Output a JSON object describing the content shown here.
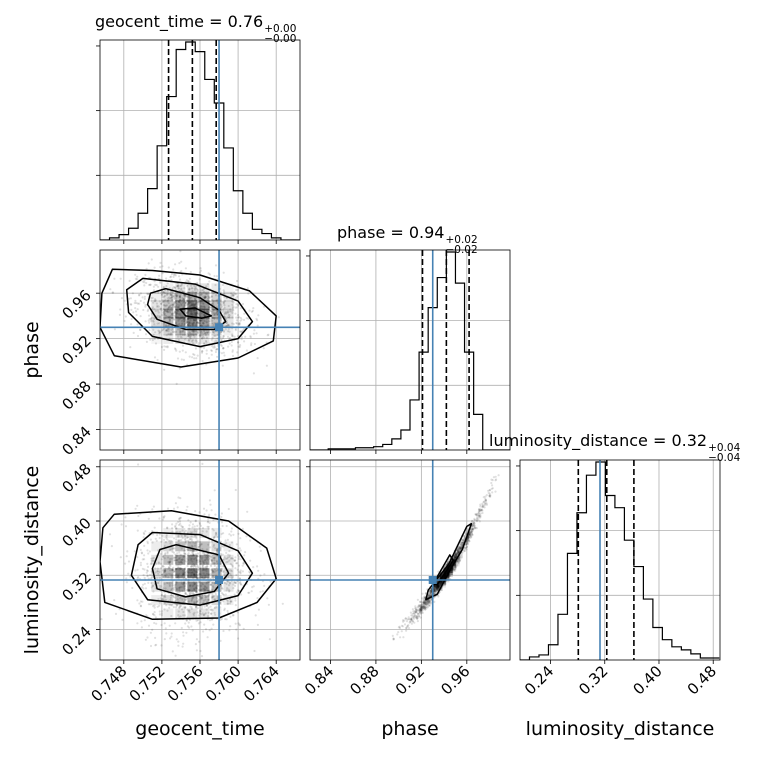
{
  "chart_data": {
    "type": "corner",
    "parameters": [
      "geocent_time",
      "phase",
      "luminosity_distance"
    ],
    "axis_labels": {
      "geocent_time": "geocent_time",
      "phase": "phase",
      "luminosity_distance": "luminosity_distance"
    },
    "ranges": {
      "geocent_time": [
        0.7455,
        0.7665
      ],
      "phase": [
        0.822,
        0.998
      ],
      "luminosity_distance": [
        0.195,
        0.49
      ]
    },
    "ticks": {
      "geocent_time": [
        0.748,
        0.752,
        0.756,
        0.76,
        0.764
      ],
      "phase": [
        0.84,
        0.88,
        0.92,
        0.96
      ],
      "luminosity_distance": [
        0.24,
        0.32,
        0.4,
        0.48
      ]
    },
    "tick_labels": {
      "geocent_time": [
        "0.748",
        "0.752",
        "0.756",
        "0.760",
        "0.764"
      ],
      "phase": [
        "0.84",
        "0.88",
        "0.92",
        "0.96"
      ],
      "luminosity_distance": [
        "0.24",
        "0.32",
        "0.40",
        "0.48"
      ]
    },
    "truth_values": {
      "geocent_time": 0.758,
      "phase": 0.93,
      "luminosity_distance": 0.313
    },
    "truth_color": "#4682b4",
    "titles": [
      {
        "label": "geocent_time = 0.76",
        "plus": "+0.00",
        "minus": "−0.00"
      },
      {
        "label": "phase = 0.94",
        "plus": "+0.02",
        "minus": "−0.02"
      },
      {
        "label": "luminosity_distance = 0.32",
        "plus": "+0.04",
        "minus": "−0.04"
      }
    ],
    "quantiles": {
      "geocent_time": [
        0.7527,
        0.7552,
        0.7577
      ],
      "phase": [
        0.921,
        0.942,
        0.962
      ],
      "luminosity_distance": [
        0.281,
        0.323,
        0.363
      ]
    },
    "histograms": {
      "geocent_time": {
        "edges": [
          0.7455,
          0.7465,
          0.7475,
          0.7485,
          0.7495,
          0.7505,
          0.7515,
          0.7525,
          0.7535,
          0.7545,
          0.7555,
          0.7565,
          0.7575,
          0.7585,
          0.7595,
          0.7605,
          0.7615,
          0.7625,
          0.7635,
          0.7645,
          0.7655,
          0.7665
        ],
        "counts": [
          0,
          2,
          5,
          11,
          25,
          48,
          88,
          134,
          178,
          185,
          176,
          150,
          128,
          86,
          46,
          25,
          10,
          6,
          2,
          0,
          0
        ]
      },
      "phase": {
        "edges": [
          0.822,
          0.83,
          0.838,
          0.846,
          0.854,
          0.862,
          0.87,
          0.878,
          0.886,
          0.894,
          0.902,
          0.91,
          0.918,
          0.926,
          0.934,
          0.942,
          0.95,
          0.958,
          0.966,
          0.974,
          0.982,
          0.99,
          0.998
        ],
        "counts": [
          0,
          0,
          1,
          1,
          1,
          2,
          2,
          3,
          5,
          10,
          18,
          45,
          88,
          128,
          155,
          178,
          150,
          88,
          32,
          0,
          0,
          0
        ]
      },
      "luminosity_distance": {
        "edges": [
          0.195,
          0.209,
          0.223,
          0.237,
          0.251,
          0.265,
          0.279,
          0.293,
          0.307,
          0.321,
          0.335,
          0.349,
          0.363,
          0.377,
          0.391,
          0.405,
          0.419,
          0.433,
          0.447,
          0.461,
          0.475,
          0.489
        ],
        "counts": [
          0,
          3,
          5,
          15,
          45,
          105,
          145,
          182,
          195,
          162,
          150,
          118,
          92,
          60,
          32,
          20,
          13,
          10,
          6,
          2,
          2
        ]
      }
    },
    "contours_2d": {
      "phase_vs_geocent_time": [
        [
          [
            0.7524,
            0.964
          ],
          [
            0.756,
            0.956
          ],
          [
            0.758,
            0.945
          ],
          [
            0.7587,
            0.935
          ],
          [
            0.7575,
            0.928
          ],
          [
            0.7545,
            0.928
          ],
          [
            0.7515,
            0.937
          ],
          [
            0.7505,
            0.95
          ],
          [
            0.7508,
            0.96
          ]
        ],
        [
          [
            0.75,
            0.973
          ],
          [
            0.7555,
            0.968
          ],
          [
            0.76,
            0.953
          ],
          [
            0.7615,
            0.935
          ],
          [
            0.76,
            0.92
          ],
          [
            0.756,
            0.913
          ],
          [
            0.751,
            0.922
          ],
          [
            0.7485,
            0.943
          ],
          [
            0.7483,
            0.963
          ]
        ],
        [
          [
            0.7468,
            0.981
          ],
          [
            0.751,
            0.98
          ],
          [
            0.756,
            0.976
          ],
          [
            0.7612,
            0.962
          ],
          [
            0.764,
            0.94
          ],
          [
            0.7637,
            0.918
          ],
          [
            0.76,
            0.903
          ],
          [
            0.754,
            0.895
          ],
          [
            0.747,
            0.905
          ],
          [
            0.7455,
            0.93
          ],
          [
            0.7457,
            0.96
          ]
        ],
        [
          [
            0.7539,
            0.946
          ],
          [
            0.7555,
            0.947
          ],
          [
            0.7572,
            0.94
          ],
          [
            0.7562,
            0.938
          ],
          [
            0.7545,
            0.94
          ]
        ]
      ],
      "luminosity_distance_vs_geocent_time": [
        [
          [
            0.7535,
            0.365
          ],
          [
            0.758,
            0.35
          ],
          [
            0.759,
            0.323
          ],
          [
            0.7575,
            0.296
          ],
          [
            0.7545,
            0.288
          ],
          [
            0.7515,
            0.3
          ],
          [
            0.751,
            0.33
          ],
          [
            0.7518,
            0.358
          ]
        ],
        [
          [
            0.751,
            0.383
          ],
          [
            0.756,
            0.38
          ],
          [
            0.76,
            0.356
          ],
          [
            0.7615,
            0.323
          ],
          [
            0.76,
            0.29
          ],
          [
            0.756,
            0.276
          ],
          [
            0.7505,
            0.284
          ],
          [
            0.7488,
            0.32
          ],
          [
            0.7495,
            0.365
          ]
        ],
        [
          [
            0.747,
            0.41
          ],
          [
            0.753,
            0.415
          ],
          [
            0.759,
            0.4
          ],
          [
            0.763,
            0.36
          ],
          [
            0.764,
            0.315
          ],
          [
            0.762,
            0.28
          ],
          [
            0.758,
            0.257
          ],
          [
            0.751,
            0.255
          ],
          [
            0.746,
            0.28
          ],
          [
            0.7455,
            0.34
          ],
          [
            0.7458,
            0.39
          ]
        ]
      ],
      "luminosity_distance_vs_phase": [
        [
          [
            0.944,
            0.336
          ],
          [
            0.96,
            0.392
          ],
          [
            0.964,
            0.396
          ],
          [
            0.956,
            0.358
          ],
          [
            0.946,
            0.33
          ],
          [
            0.934,
            0.292
          ],
          [
            0.924,
            0.284
          ],
          [
            0.926,
            0.298
          ]
        ],
        [
          [
            0.93,
            0.306
          ],
          [
            0.945,
            0.35
          ],
          [
            0.948,
            0.342
          ],
          [
            0.934,
            0.306
          ]
        ]
      ]
    }
  }
}
